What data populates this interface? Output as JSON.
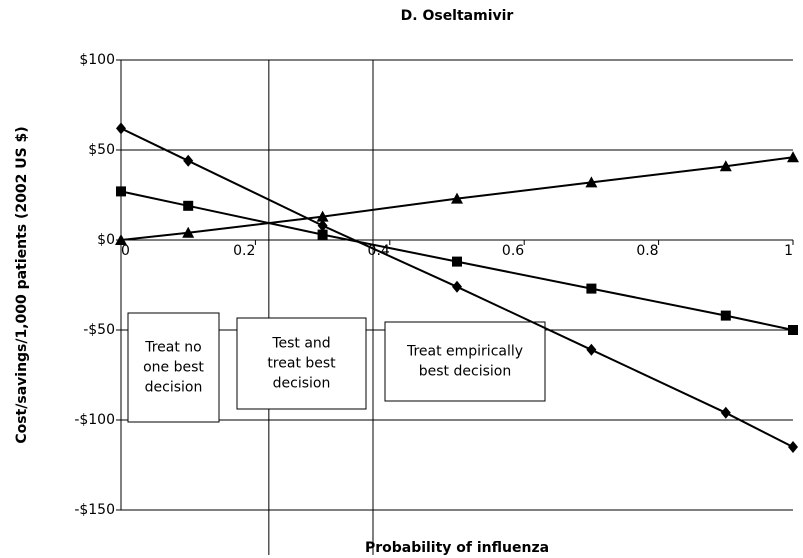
{
  "chart_data": {
    "type": "line",
    "title": "D. Oseltamivir",
    "xlabel": "Probability of influenza",
    "ylabel": "Cost/savings/1,000 patients (2002 US $)",
    "x": [
      0,
      0.1,
      0.3,
      0.5,
      0.7,
      0.9,
      1
    ],
    "series": [
      {
        "marker": "diamond",
        "color": "#000000",
        "values": [
          62,
          44,
          8,
          -26,
          -61,
          -96,
          -115
        ]
      },
      {
        "marker": "square",
        "color": "#000000",
        "values": [
          27,
          19,
          3,
          -12,
          -27,
          -42,
          -50
        ]
      },
      {
        "marker": "triangle",
        "color": "#000000",
        "values": [
          0,
          4,
          13,
          23,
          32,
          41,
          46
        ]
      }
    ],
    "xlim": [
      0,
      1
    ],
    "xticks": [
      0,
      0.2,
      0.4,
      0.6,
      0.8,
      1
    ],
    "ylim": [
      -150,
      100
    ],
    "yticks": [
      {
        "value": 100,
        "label": "$100"
      },
      {
        "value": 50,
        "label": "$50"
      },
      {
        "value": 0,
        "label": "$0"
      },
      {
        "value": -50,
        "label": "-$50"
      },
      {
        "value": -100,
        "label": "-$100"
      },
      {
        "value": -150,
        "label": "-$150"
      }
    ],
    "grid": true,
    "thresholds": [
      0.22,
      0.375
    ],
    "annotations": [
      {
        "lines": [
          "Treat no",
          "one best",
          "decision"
        ]
      },
      {
        "lines": [
          "Test and",
          "treat best",
          "decision"
        ]
      },
      {
        "lines": [
          "Treat empirically",
          "best decision"
        ]
      }
    ]
  }
}
